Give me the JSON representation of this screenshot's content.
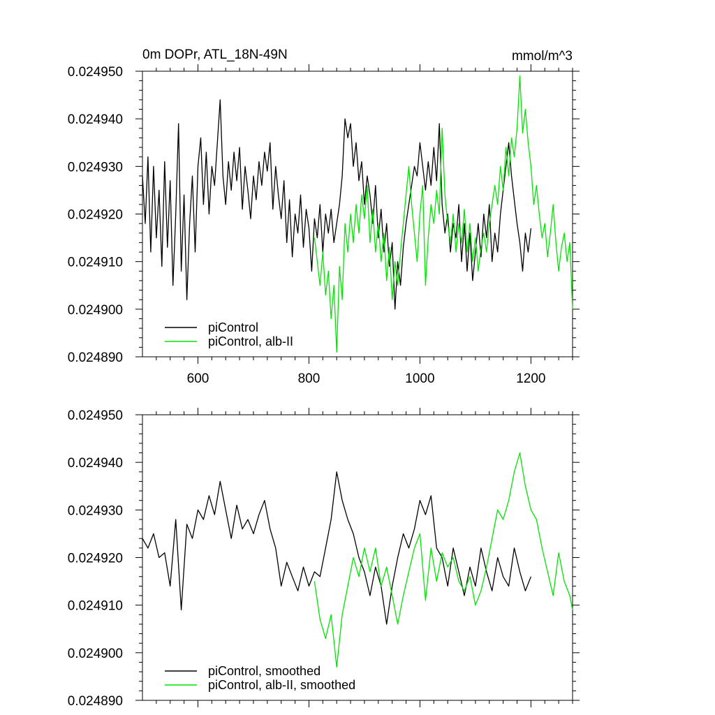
{
  "figure": {
    "title_left": "0m DOPr, ATL_18N-49N",
    "title_right": "mmol/m^3"
  },
  "colors": {
    "series_a": "#000000",
    "series_b": "#00e600",
    "axis": "#000000"
  },
  "chart_data": [
    {
      "type": "line",
      "panel": "top",
      "title": "0m DOPr, ATL_18N-49N",
      "units": "mmol/m^3",
      "xlim": [
        500,
        1275
      ],
      "ylim": [
        0.02489,
        0.02495
      ],
      "xticks": [
        600,
        800,
        1000,
        1200
      ],
      "xtick_labels": [
        "600",
        "800",
        "1000",
        "1200"
      ],
      "yticks": [
        0.02489,
        0.0249,
        0.02491,
        0.02492,
        0.02493,
        0.02494,
        0.02495
      ],
      "ytick_labels": [
        "0.024890",
        "0.024900",
        "0.024910",
        "0.024920",
        "0.024930",
        "0.024940",
        "0.024950"
      ],
      "legend": {
        "position": "bottom-left",
        "entries": [
          "piControl",
          "piControl, alb-II"
        ]
      },
      "series": [
        {
          "name": "piControl",
          "color": "#000000",
          "x": [
            500,
            505,
            510,
            515,
            520,
            525,
            530,
            535,
            540,
            545,
            550,
            555,
            560,
            565,
            570,
            575,
            580,
            585,
            590,
            595,
            600,
            605,
            610,
            615,
            620,
            625,
            630,
            635,
            640,
            645,
            650,
            655,
            660,
            665,
            670,
            675,
            680,
            685,
            690,
            695,
            700,
            705,
            710,
            715,
            720,
            725,
            730,
            735,
            740,
            745,
            750,
            755,
            760,
            765,
            770,
            775,
            780,
            785,
            790,
            795,
            800,
            805,
            810,
            815,
            820,
            825,
            830,
            835,
            840,
            845,
            850,
            855,
            860,
            865,
            870,
            875,
            880,
            885,
            890,
            895,
            900,
            905,
            910,
            915,
            920,
            925,
            930,
            935,
            940,
            945,
            950,
            955,
            960,
            965,
            970,
            975,
            980,
            985,
            990,
            995,
            1000,
            1005,
            1010,
            1015,
            1020,
            1025,
            1030,
            1035,
            1040,
            1045,
            1050,
            1055,
            1060,
            1065,
            1070,
            1075,
            1080,
            1085,
            1090,
            1095,
            1100,
            1105,
            1110,
            1115,
            1120,
            1125,
            1130,
            1135,
            1140,
            1145,
            1150,
            1155,
            1160,
            1165,
            1170,
            1175,
            1180,
            1185,
            1190,
            1195,
            1200
          ],
          "y": [
            0.024928,
            0.024918,
            0.024932,
            0.024912,
            0.02493,
            0.024915,
            0.024925,
            0.024909,
            0.024931,
            0.024913,
            0.024927,
            0.024905,
            0.02492,
            0.024939,
            0.024908,
            0.024924,
            0.024902,
            0.024918,
            0.024928,
            0.024912,
            0.02493,
            0.024936,
            0.024922,
            0.024933,
            0.02492,
            0.02493,
            0.024926,
            0.024935,
            0.024944,
            0.024928,
            0.024922,
            0.024931,
            0.024925,
            0.024933,
            0.024927,
            0.024934,
            0.024921,
            0.02493,
            0.024925,
            0.024919,
            0.024928,
            0.024923,
            0.024931,
            0.024926,
            0.024933,
            0.024929,
            0.024935,
            0.024921,
            0.02493,
            0.024924,
            0.024919,
            0.024927,
            0.024914,
            0.024923,
            0.024911,
            0.02492,
            0.024916,
            0.024924,
            0.024913,
            0.024921,
            0.024917,
            0.024908,
            0.024919,
            0.024915,
            0.024922,
            0.024912,
            0.02492,
            0.024916,
            0.024921,
            0.024914,
            0.024918,
            0.024922,
            0.024928,
            0.02494,
            0.024936,
            0.024939,
            0.02493,
            0.024935,
            0.024927,
            0.024931,
            0.024922,
            0.024928,
            0.024924,
            0.024918,
            0.024926,
            0.024915,
            0.024921,
            0.024912,
            0.024918,
            0.024909,
            0.024914,
            0.0249,
            0.02491,
            0.024905,
            0.024913,
            0.024918,
            0.024922,
            0.024926,
            0.02493,
            0.024928,
            0.024935,
            0.02493,
            0.024925,
            0.024931,
            0.024926,
            0.024934,
            0.024927,
            0.024939,
            0.024922,
            0.024916,
            0.02492,
            0.024912,
            0.024918,
            0.024915,
            0.024922,
            0.02491,
            0.024918,
            0.024908,
            0.024916,
            0.024906,
            0.024912,
            0.024918,
            0.024911,
            0.02492,
            0.024915,
            0.024922,
            0.02491,
            0.024916,
            0.024912,
            0.02492,
            0.024925,
            0.02493,
            0.024935,
            0.024928,
            0.024923,
            0.024918,
            0.024914,
            0.024908,
            0.024916,
            0.024912,
            0.024917
          ]
        },
        {
          "name": "piControl, alb-II",
          "color": "#00e600",
          "x": [
            810,
            815,
            820,
            825,
            830,
            835,
            840,
            845,
            850,
            855,
            860,
            865,
            870,
            875,
            880,
            885,
            890,
            895,
            900,
            905,
            910,
            915,
            920,
            925,
            930,
            935,
            940,
            945,
            950,
            955,
            960,
            965,
            970,
            975,
            980,
            985,
            990,
            995,
            1000,
            1005,
            1010,
            1015,
            1020,
            1025,
            1030,
            1035,
            1040,
            1045,
            1050,
            1055,
            1060,
            1065,
            1070,
            1075,
            1080,
            1085,
            1090,
            1095,
            1100,
            1105,
            1110,
            1115,
            1120,
            1125,
            1130,
            1135,
            1140,
            1145,
            1150,
            1155,
            1160,
            1165,
            1170,
            1175,
            1180,
            1185,
            1190,
            1195,
            1200,
            1205,
            1210,
            1215,
            1220,
            1225,
            1230,
            1235,
            1240,
            1245,
            1250,
            1255,
            1260,
            1265,
            1270,
            1275
          ],
          "y": [
            0.024915,
            0.02491,
            0.024905,
            0.024912,
            0.024903,
            0.024908,
            0.024898,
            0.024905,
            0.024891,
            0.024909,
            0.024902,
            0.024918,
            0.024912,
            0.02492,
            0.024914,
            0.024922,
            0.024916,
            0.024924,
            0.024919,
            0.024926,
            0.024914,
            0.024921,
            0.024912,
            0.024918,
            0.02491,
            0.024916,
            0.024906,
            0.024913,
            0.024902,
            0.02491,
            0.024905,
            0.024912,
            0.024918,
            0.024924,
            0.02493,
            0.024922,
            0.024916,
            0.02491,
            0.02492,
            0.024926,
            0.024905,
            0.024915,
            0.024922,
            0.024918,
            0.024925,
            0.02492,
            0.024938,
            0.024924,
            0.024918,
            0.024914,
            0.02492,
            0.024912,
            0.024918,
            0.024914,
            0.024921,
            0.024912,
            0.024918,
            0.02491,
            0.024915,
            0.024908,
            0.024913,
            0.024916,
            0.024912,
            0.024918,
            0.024922,
            0.024926,
            0.024922,
            0.02493,
            0.024925,
            0.024934,
            0.024928,
            0.024936,
            0.024932,
            0.024938,
            0.024949,
            0.024937,
            0.024942,
            0.024935,
            0.02493,
            0.024922,
            0.024926,
            0.02492,
            0.024915,
            0.024918,
            0.024911,
            0.024916,
            0.024922,
            0.024914,
            0.024908,
            0.024913,
            0.024916,
            0.02491,
            0.024914,
            0.0249
          ]
        }
      ]
    },
    {
      "type": "line",
      "panel": "bottom",
      "xlim": [
        500,
        1275
      ],
      "ylim": [
        0.02489,
        0.02495
      ],
      "xticks": [
        600,
        800,
        1000,
        1200
      ],
      "yticks": [
        0.02489,
        0.0249,
        0.02491,
        0.02492,
        0.02493,
        0.02494,
        0.02495
      ],
      "ytick_labels": [
        "0.024890",
        "0.024900",
        "0.024910",
        "0.024920",
        "0.024930",
        "0.024940",
        "0.024950"
      ],
      "legend": {
        "position": "bottom-left",
        "entries": [
          "piControl, smoothed",
          "piControl, alb-II, smoothed"
        ]
      },
      "series": [
        {
          "name": "piControl, smoothed",
          "color": "#000000",
          "x": [
            500,
            510,
            520,
            530,
            540,
            550,
            560,
            570,
            580,
            590,
            600,
            610,
            620,
            630,
            640,
            650,
            660,
            670,
            680,
            690,
            700,
            710,
            720,
            730,
            740,
            750,
            760,
            770,
            780,
            790,
            800,
            810,
            820,
            830,
            840,
            850,
            860,
            870,
            880,
            890,
            900,
            910,
            920,
            930,
            940,
            950,
            960,
            970,
            980,
            990,
            1000,
            1010,
            1020,
            1030,
            1040,
            1050,
            1060,
            1070,
            1080,
            1090,
            1100,
            1110,
            1120,
            1130,
            1140,
            1150,
            1160,
            1170,
            1180,
            1190,
            1200
          ],
          "y": [
            0.024924,
            0.024922,
            0.024925,
            0.02492,
            0.024921,
            0.024914,
            0.024928,
            0.024909,
            0.024927,
            0.024924,
            0.02493,
            0.024928,
            0.024933,
            0.024929,
            0.024936,
            0.02493,
            0.024924,
            0.024931,
            0.024926,
            0.024928,
            0.024925,
            0.024929,
            0.024932,
            0.024926,
            0.024922,
            0.024914,
            0.024919,
            0.024916,
            0.024913,
            0.024918,
            0.024914,
            0.024917,
            0.024916,
            0.024922,
            0.024928,
            0.024938,
            0.024932,
            0.024928,
            0.024925,
            0.02492,
            0.024917,
            0.024912,
            0.024918,
            0.024914,
            0.024906,
            0.024914,
            0.02492,
            0.024925,
            0.024922,
            0.024926,
            0.024932,
            0.024929,
            0.024933,
            0.024922,
            0.02492,
            0.024914,
            0.024922,
            0.024917,
            0.024912,
            0.024918,
            0.024914,
            0.024922,
            0.024917,
            0.024913,
            0.02492,
            0.024916,
            0.024914,
            0.024922,
            0.024917,
            0.024913,
            0.024916
          ]
        },
        {
          "name": "piControl, alb-II, smoothed",
          "color": "#00e600",
          "x": [
            810,
            820,
            830,
            840,
            850,
            860,
            870,
            880,
            890,
            900,
            910,
            920,
            930,
            940,
            950,
            960,
            970,
            980,
            990,
            1000,
            1010,
            1020,
            1030,
            1040,
            1050,
            1060,
            1070,
            1080,
            1090,
            1100,
            1110,
            1120,
            1130,
            1140,
            1150,
            1160,
            1170,
            1180,
            1190,
            1200,
            1210,
            1220,
            1230,
            1240,
            1250,
            1260,
            1270,
            1275
          ],
          "y": [
            0.024915,
            0.024907,
            0.024903,
            0.024908,
            0.024897,
            0.024908,
            0.024914,
            0.02492,
            0.024916,
            0.024922,
            0.024917,
            0.024922,
            0.024914,
            0.024918,
            0.024912,
            0.024906,
            0.024912,
            0.024917,
            0.024922,
            0.024925,
            0.024911,
            0.024922,
            0.024915,
            0.024921,
            0.024918,
            0.02492,
            0.024915,
            0.024913,
            0.024916,
            0.02491,
            0.024913,
            0.024918,
            0.024924,
            0.02493,
            0.024928,
            0.024932,
            0.024938,
            0.024942,
            0.024935,
            0.02493,
            0.024928,
            0.024922,
            0.024917,
            0.024912,
            0.024921,
            0.024915,
            0.024912,
            0.024909
          ]
        }
      ]
    }
  ]
}
